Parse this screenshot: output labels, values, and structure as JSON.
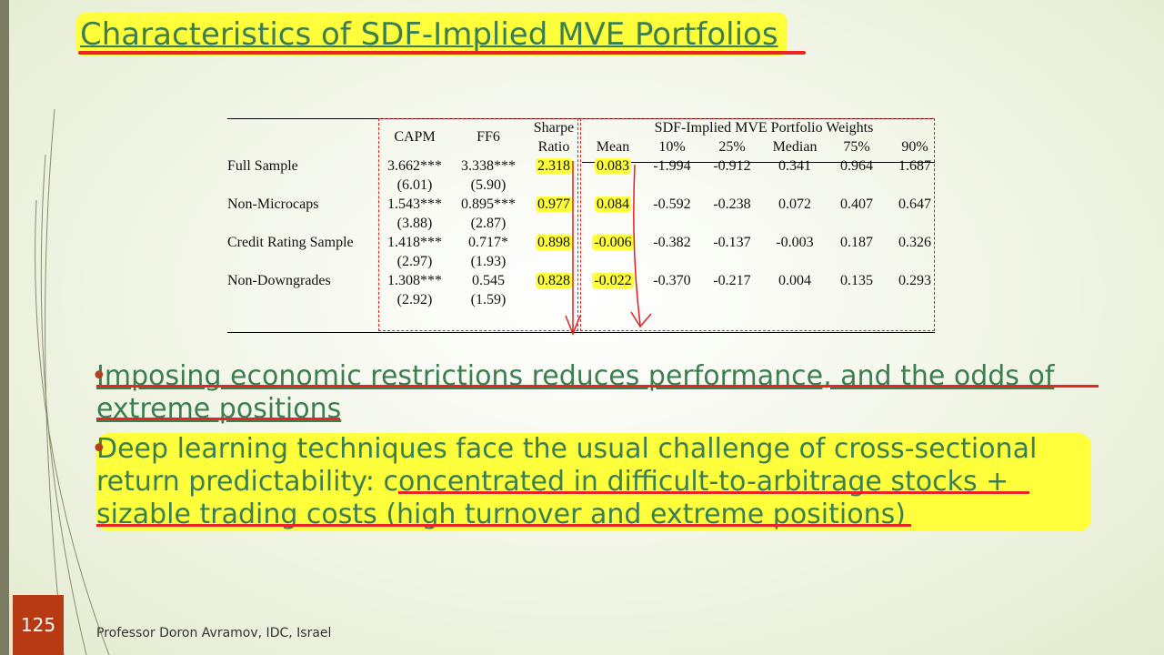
{
  "slide": {
    "title": "Characteristics of SDF-Implied MVE Portfolios",
    "page_number": "125",
    "footer": "Professor Doron Avramov, IDC, Israel"
  },
  "table": {
    "header": {
      "capm": "CAPM",
      "ff6": "FF6",
      "sharpe_line1": "Sharpe",
      "sharpe_line2": "Ratio",
      "group": "SDF-Implied MVE Portfolio Weights",
      "mean": "Mean",
      "p10": "10%",
      "p25": "25%",
      "median": "Median",
      "p75": "75%",
      "p90": "90%"
    },
    "rows": [
      {
        "label": "Full Sample",
        "capm": "3.662***",
        "ff6": "3.338***",
        "sharpe": "2.318",
        "mean": "0.083",
        "p10": "-1.994",
        "p25": "-0.912",
        "median": "0.341",
        "p75": "0.964",
        "p90": "1.687",
        "capm_t": "(6.01)",
        "ff6_t": "(5.90)"
      },
      {
        "label": "Non-Microcaps",
        "capm": "1.543***",
        "ff6": "0.895***",
        "sharpe": "0.977",
        "mean": "0.084",
        "p10": "-0.592",
        "p25": "-0.238",
        "median": "0.072",
        "p75": "0.407",
        "p90": "0.647",
        "capm_t": "(3.88)",
        "ff6_t": "(2.87)"
      },
      {
        "label": "Credit Rating Sample",
        "capm": "1.418***",
        "ff6": "0.717*",
        "sharpe": "0.898",
        "mean": "-0.006",
        "p10": "-0.382",
        "p25": "-0.137",
        "median": "-0.003",
        "p75": "0.187",
        "p90": "0.326",
        "capm_t": "(2.97)",
        "ff6_t": "(1.93)"
      },
      {
        "label": "Non-Downgrades",
        "capm": "1.308***",
        "ff6": "0.545",
        "sharpe": "0.828",
        "mean": "-0.022",
        "p10": "-0.370",
        "p25": "-0.217",
        "median": "0.004",
        "p75": "0.135",
        "p90": "0.293",
        "capm_t": "(2.92)",
        "ff6_t": "(1.59)"
      }
    ]
  },
  "bullets": [
    "Imposing economic restrictions reduces performance, and the odds of extreme positions",
    "Deep learning techniques face the usual challenge of cross-sectional return predictability: concentrated in difficult-to-arbitrage stocks + sizable trading costs (high turnover and extreme positions)"
  ],
  "colors": {
    "title_green": "#3b7f50",
    "highlight": "#ffff3c",
    "annotation_red": "#ee2222",
    "page_badge": "#b83a14"
  }
}
